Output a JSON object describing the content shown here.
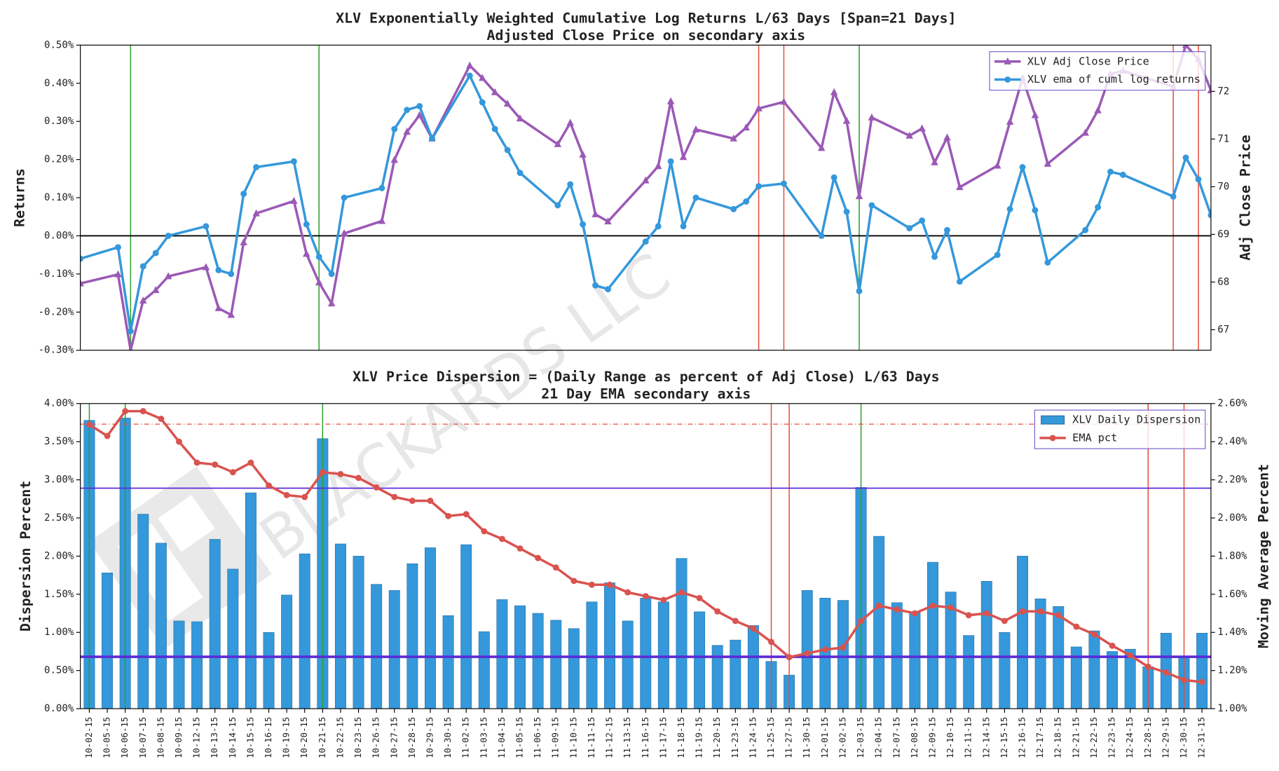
{
  "watermark": "BLACKARDS LLC",
  "chart_data": [
    {
      "type": "line",
      "title": "XLV Exponentially Weighted Cumulative Log Returns L/63 Days [Span=21 Days]",
      "subtitle": "Adjusted Close Price on secondary axis",
      "ylabel": "Returns",
      "y2label": "Adj Close Price",
      "ylim": [
        -0.3,
        0.5
      ],
      "yticks": [
        {
          "value": -0.3,
          "label": "-0.30%"
        },
        {
          "value": -0.2,
          "label": "-0.20%"
        },
        {
          "value": -0.1,
          "label": "-0.10%"
        },
        {
          "value": 0,
          "label": "0.00%"
        },
        {
          "value": 0.1,
          "label": "0.10%"
        },
        {
          "value": 0.2,
          "label": "0.20%"
        },
        {
          "value": 0.3,
          "label": "0.30%"
        },
        {
          "value": 0.4,
          "label": "0.40%"
        },
        {
          "value": 0.5,
          "label": "0.50%"
        }
      ],
      "y2lim": [
        66.57,
        72.97
      ],
      "y2ticks": [
        67,
        68,
        69,
        70,
        71,
        72
      ],
      "legend": "upper right",
      "series": [
        {
          "name": "XLV Adj Close Price",
          "color": "#9b59b6",
          "axis": "y2",
          "marker": "triangle",
          "values": [
            67.97,
            68.16,
            66.57,
            67.61,
            67.83,
            68.12,
            68.31,
            67.45,
            67.31,
            68.83,
            69.44,
            69.7,
            68.59,
            67.99,
            67.55,
            69.02,
            69.28,
            70.56,
            71.15,
            71.5,
            71.01,
            72.54,
            72.28,
            71.98,
            71.74,
            71.43,
            70.89,
            71.34,
            70.67,
            69.42,
            69.27,
            70.13,
            70.43,
            71.79,
            70.62,
            71.2,
            71.01,
            71.24,
            71.64,
            71.78,
            70.81,
            71.98,
            71.38,
            69.8,
            71.45,
            71.07,
            71.22,
            70.51,
            71.03,
            69.99,
            70.44,
            71.36,
            72.28,
            71.5,
            70.48,
            71.13,
            71.6,
            72.36,
            72.43,
            72.1,
            72.97,
            72.67,
            72.02
          ]
        },
        {
          "name": "XLV ema of cuml log returns",
          "color": "#3498db",
          "marker": "circle",
          "values": [
            -0.06,
            -0.03,
            -0.25,
            -0.08,
            -0.045,
            0.0,
            0.025,
            -0.09,
            -0.1,
            0.11,
            0.18,
            0.195,
            0.03,
            -0.055,
            -0.1,
            0.1,
            0.125,
            0.28,
            0.33,
            0.34,
            0.255,
            0.42,
            0.35,
            0.28,
            0.225,
            0.165,
            0.08,
            0.135,
            0.03,
            -0.13,
            -0.14,
            -0.015,
            0.025,
            0.195,
            0.025,
            0.1,
            0.07,
            0.09,
            0.13,
            0.137,
            0.0,
            0.153,
            0.063,
            -0.145,
            0.08,
            0.02,
            0.04,
            -0.055,
            0.015,
            -0.12,
            -0.05,
            0.07,
            0.18,
            0.067,
            -0.07,
            0.015,
            0.075,
            0.168,
            0.16,
            0.103,
            0.205,
            0.148,
            0.054
          ]
        }
      ],
      "hlines": [
        {
          "value": 0,
          "color": "#000000",
          "linewidth": 1.5
        }
      ],
      "vlines": [
        {
          "date": "10-06-15",
          "color": "#2ca02c"
        },
        {
          "date": "10-21-15",
          "color": "#2ca02c"
        },
        {
          "date": "11-25-15",
          "color": "#e74c3c"
        },
        {
          "date": "11-27-15",
          "color": "#e74c3c"
        },
        {
          "date": "12-03-15",
          "color": "#2ca02c"
        },
        {
          "date": "12-28-15",
          "color": "#e74c3c"
        },
        {
          "date": "12-30-15",
          "color": "#e74c3c"
        }
      ]
    },
    {
      "type": "bar",
      "title": "XLV Price Dispersion = (Daily Range as percent of Adj Close) L/63 Days",
      "subtitle": "21 Day EMA secondary axis",
      "ylabel": "Dispersion Percent",
      "y2label": "Moving Average Percent",
      "categories": [
        "10-02-15",
        "10-05-15",
        "10-06-15",
        "10-07-15",
        "10-08-15",
        "10-09-15",
        "10-12-15",
        "10-13-15",
        "10-14-15",
        "10-15-15",
        "10-16-15",
        "10-19-15",
        "10-20-15",
        "10-21-15",
        "10-22-15",
        "10-23-15",
        "10-26-15",
        "10-27-15",
        "10-28-15",
        "10-29-15",
        "10-30-15",
        "11-02-15",
        "11-03-15",
        "11-04-15",
        "11-05-15",
        "11-06-15",
        "11-09-15",
        "11-10-15",
        "11-11-15",
        "11-12-15",
        "11-13-15",
        "11-16-15",
        "11-17-15",
        "11-18-15",
        "11-19-15",
        "11-20-15",
        "11-23-15",
        "11-24-15",
        "11-25-15",
        "11-27-15",
        "11-30-15",
        "12-01-15",
        "12-02-15",
        "12-03-15",
        "12-04-15",
        "12-07-15",
        "12-08-15",
        "12-09-15",
        "12-10-15",
        "12-11-15",
        "12-14-15",
        "12-15-15",
        "12-16-15",
        "12-17-15",
        "12-18-15",
        "12-21-15",
        "12-22-15",
        "12-23-15",
        "12-24-15",
        "12-28-15",
        "12-29-15",
        "12-30-15",
        "12-31-15"
      ],
      "ylim": [
        0,
        4
      ],
      "yticks": [
        {
          "value": 0,
          "label": "0.00%"
        },
        {
          "value": 0.5,
          "label": "0.50%"
        },
        {
          "value": 1,
          "label": "1.00%"
        },
        {
          "value": 1.5,
          "label": "1.50%"
        },
        {
          "value": 2,
          "label": "2.00%"
        },
        {
          "value": 2.5,
          "label": "2.50%"
        },
        {
          "value": 3,
          "label": "3.00%"
        },
        {
          "value": 3.5,
          "label": "3.50%"
        },
        {
          "value": 4,
          "label": "4.00%"
        }
      ],
      "y2lim": [
        1.0,
        2.6
      ],
      "y2ticks": [
        {
          "value": 1.0,
          "label": "1.00%"
        },
        {
          "value": 1.2,
          "label": "1.20%"
        },
        {
          "value": 1.4,
          "label": "1.40%"
        },
        {
          "value": 1.6,
          "label": "1.60%"
        },
        {
          "value": 1.8,
          "label": "1.80%"
        },
        {
          "value": 2.0,
          "label": "2.00%"
        },
        {
          "value": 2.2,
          "label": "2.20%"
        },
        {
          "value": 2.4,
          "label": "2.40%"
        },
        {
          "value": 2.6,
          "label": "2.60%"
        }
      ],
      "legend": "upper right",
      "series": [
        {
          "name": "XLV Daily Dispersion",
          "color": "#3498db",
          "type": "bar",
          "values": [
            3.78,
            1.78,
            3.81,
            2.55,
            2.17,
            1.15,
            1.14,
            2.22,
            1.83,
            2.83,
            1.0,
            1.49,
            2.03,
            3.54,
            2.16,
            2.0,
            1.63,
            1.55,
            1.9,
            2.11,
            1.22,
            2.15,
            1.01,
            1.43,
            1.35,
            1.25,
            1.16,
            1.05,
            1.4,
            1.65,
            1.15,
            1.45,
            1.4,
            1.97,
            1.27,
            0.83,
            0.9,
            1.09,
            0.62,
            0.44,
            1.55,
            1.45,
            1.42,
            2.9,
            2.26,
            1.39,
            1.27,
            1.92,
            1.53,
            0.96,
            1.67,
            1.0,
            2.0,
            1.44,
            1.34,
            0.81,
            1.02,
            0.75,
            0.78,
            0.55,
            0.99,
            0.69,
            0.99
          ]
        },
        {
          "name": "EMA pct",
          "color": "#d9534f",
          "type": "line",
          "axis": "y2",
          "marker": "circle",
          "values": [
            2.49,
            2.43,
            2.56,
            2.56,
            2.52,
            2.4,
            2.29,
            2.28,
            2.24,
            2.29,
            2.17,
            2.12,
            2.11,
            2.24,
            2.23,
            2.21,
            2.16,
            2.11,
            2.09,
            2.09,
            2.01,
            2.02,
            1.93,
            1.89,
            1.84,
            1.79,
            1.74,
            1.67,
            1.65,
            1.65,
            1.61,
            1.59,
            1.57,
            1.61,
            1.58,
            1.51,
            1.46,
            1.42,
            1.35,
            1.27,
            1.29,
            1.31,
            1.32,
            1.46,
            1.54,
            1.52,
            1.5,
            1.54,
            1.53,
            1.49,
            1.5,
            1.46,
            1.51,
            1.51,
            1.49,
            1.43,
            1.39,
            1.33,
            1.28,
            1.22,
            1.19,
            1.15,
            1.14
          ]
        }
      ],
      "hlines": [
        {
          "value": 2.89,
          "color": "#5b2bd6",
          "linewidth": 1.5
        },
        {
          "value": 0.68,
          "color": "#5b2bd6",
          "linewidth": 3
        },
        {
          "value": 3.73,
          "color": "#e74c3c",
          "linewidth": 1,
          "dash": "dashdot"
        }
      ],
      "vlines": [
        {
          "date": "10-02-15",
          "color": "#2ca02c"
        },
        {
          "date": "10-06-15",
          "color": "#2ca02c"
        },
        {
          "date": "10-21-15",
          "color": "#2ca02c"
        },
        {
          "date": "11-25-15",
          "color": "#e74c3c"
        },
        {
          "date": "11-27-15",
          "color": "#e74c3c"
        },
        {
          "date": "12-03-15",
          "color": "#2ca02c"
        },
        {
          "date": "12-28-15",
          "color": "#e74c3c"
        },
        {
          "date": "12-30-15",
          "color": "#e74c3c"
        }
      ]
    }
  ]
}
